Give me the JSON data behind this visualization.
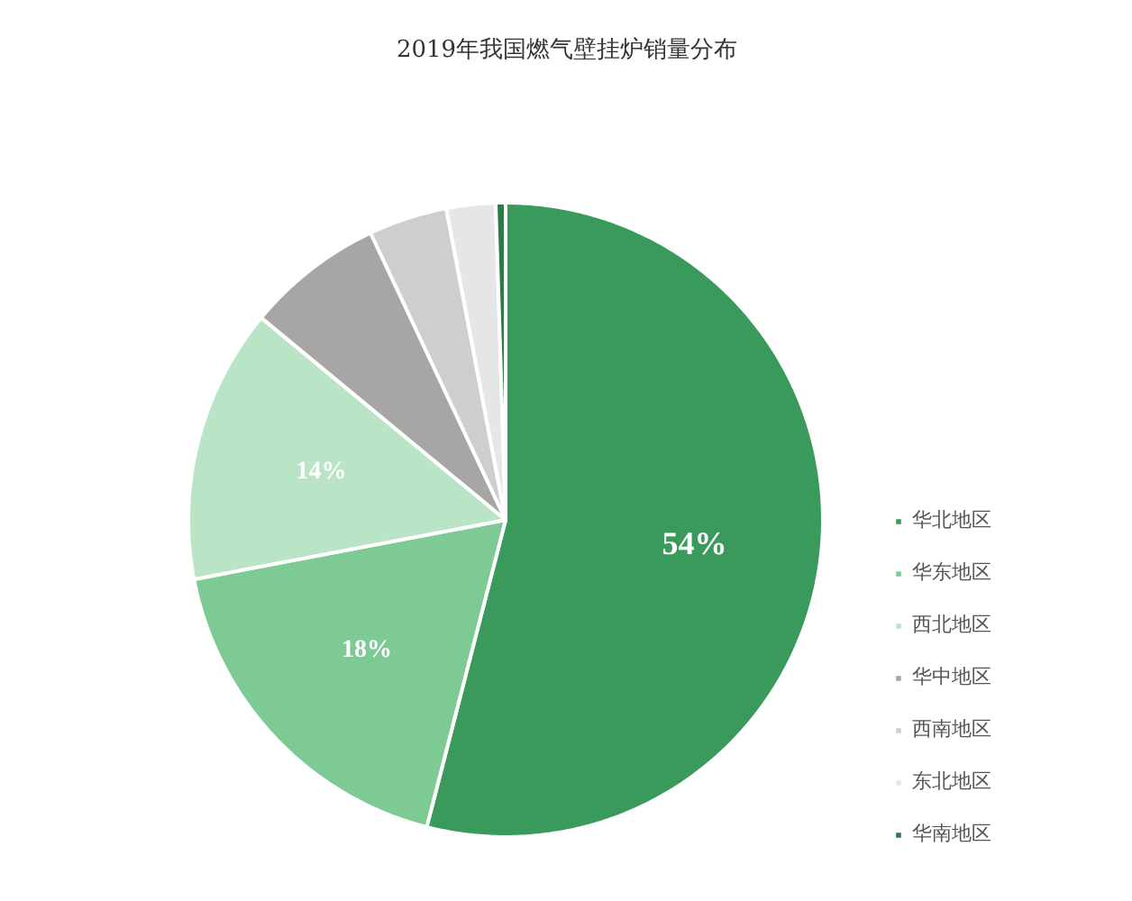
{
  "chart_data": {
    "type": "pie",
    "title": "2019年我国燃气壁挂炉销量分布",
    "categories": [
      "华北地区",
      "华东地区",
      "西北地区",
      "华中地区",
      "西南地区",
      "东北地区",
      "华南地区"
    ],
    "values": [
      54,
      18,
      14,
      7,
      4,
      2.5,
      0.5
    ],
    "value_labels": [
      "54%",
      "18%",
      "14%",
      null,
      null,
      null,
      null
    ],
    "colors": [
      "#3a9a5b",
      "#7dca94",
      "#b9e4c6",
      "#a8a5a5",
      "#cfcdcd",
      "#e6e6e6",
      "#2c7a48"
    ],
    "legend": "right"
  }
}
